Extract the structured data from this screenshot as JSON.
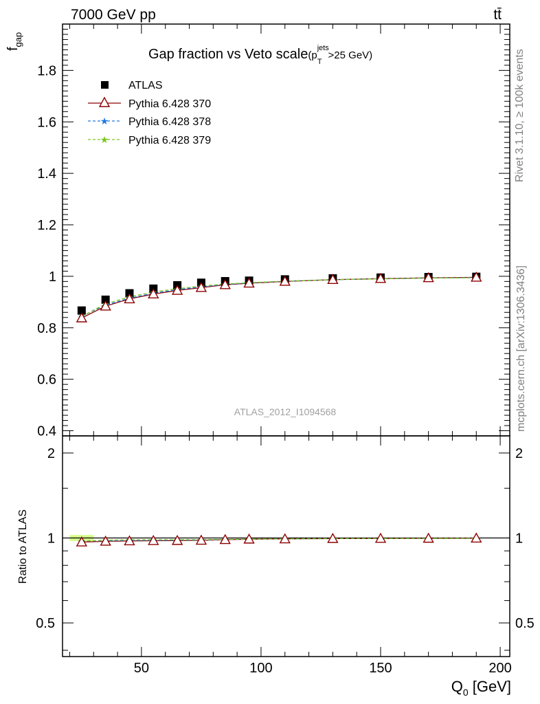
{
  "header": {
    "beam": "7000 GeV pp",
    "process": "tt̄",
    "title_main": "Gap fraction vs Veto scale",
    "title_cut": "(p",
    "title_cut_sup": "jets",
    "title_cut_sub": "T",
    "title_cut_tail": ">25 GeV)"
  },
  "side": {
    "rivet_label": "Rivet 3.1.10, ≥ 100k events",
    "mcplots_label": "mcplots.cern.ch [arXiv:1306.3436]"
  },
  "analysis_label": "ATLAS_2012_I1094568",
  "axes": {
    "top_ylabel": "f",
    "top_ylabel_sub": "gap",
    "bottom_ylabel": "Ratio to ATLAS",
    "xlabel": "Q",
    "xlabel_sub": "0",
    "xlabel_unit": " [GeV]",
    "top_yticks": [
      0.4,
      0.6,
      0.8,
      1,
      1.2,
      1.4,
      1.6,
      1.8
    ],
    "bottom_yticks": [
      0.5,
      1,
      2
    ],
    "xticks": [
      50,
      100,
      150,
      200
    ]
  },
  "colors": {
    "data": "#000000",
    "py370": "#8b0000",
    "py378": "#1e78e0",
    "py379": "#7ac61e",
    "band": "#d7ff8c"
  },
  "chart_data": [
    {
      "type": "line",
      "name": "main",
      "xlim": [
        17,
        204
      ],
      "ylim": [
        0.38,
        1.98
      ],
      "x": [
        25,
        35,
        45,
        55,
        65,
        75,
        85,
        95,
        110,
        130,
        150,
        170,
        190
      ],
      "series": [
        {
          "name": "ATLAS",
          "marker": "square",
          "values": [
            0.867,
            0.909,
            0.934,
            0.952,
            0.965,
            0.975,
            0.981,
            0.983,
            0.988,
            0.992,
            0.995,
            0.997,
            0.998
          ]
        },
        {
          "name": "Pythia 6.428 370",
          "marker": "triangle",
          "values": [
            0.838,
            0.884,
            0.912,
            0.931,
            0.945,
            0.956,
            0.967,
            0.973,
            0.98,
            0.987,
            0.991,
            0.994,
            0.996
          ]
        },
        {
          "name": "Pythia 6.428 378",
          "marker": "star",
          "values": [
            0.845,
            0.888,
            0.915,
            0.934,
            0.948,
            0.959,
            0.968,
            0.974,
            0.981,
            0.987,
            0.99,
            0.993,
            0.995
          ]
        },
        {
          "name": "Pythia 6.428 379",
          "marker": "star",
          "values": [
            0.844,
            0.893,
            0.92,
            0.939,
            0.952,
            0.962,
            0.97,
            0.975,
            0.981,
            0.987,
            0.99,
            0.993,
            0.994
          ]
        }
      ]
    },
    {
      "type": "line",
      "name": "ratio",
      "xlim": [
        17,
        204
      ],
      "ylim": [
        0.38,
        2.3
      ],
      "yscale": "log",
      "x": [
        25,
        35,
        45,
        55,
        65,
        75,
        85,
        95,
        110,
        130,
        150,
        170,
        190
      ],
      "band": {
        "name": "ATLAS",
        "low": 0.975,
        "high": 1.025
      },
      "series": [
        {
          "name": "Pythia 6.428 370",
          "values": [
            0.967,
            0.973,
            0.976,
            0.978,
            0.979,
            0.981,
            0.986,
            0.99,
            0.992,
            0.995,
            0.996,
            0.997,
            0.998
          ]
        },
        {
          "name": "Pythia 6.428 378",
          "values": [
            0.975,
            0.977,
            0.98,
            0.981,
            0.982,
            0.984,
            0.987,
            0.991,
            0.993,
            0.995,
            0.995,
            0.996,
            0.997
          ]
        },
        {
          "name": "Pythia 6.428 379",
          "values": [
            0.974,
            0.982,
            0.985,
            0.986,
            0.986,
            0.987,
            0.989,
            0.992,
            0.993,
            0.995,
            0.995,
            0.996,
            0.996
          ]
        }
      ]
    }
  ]
}
